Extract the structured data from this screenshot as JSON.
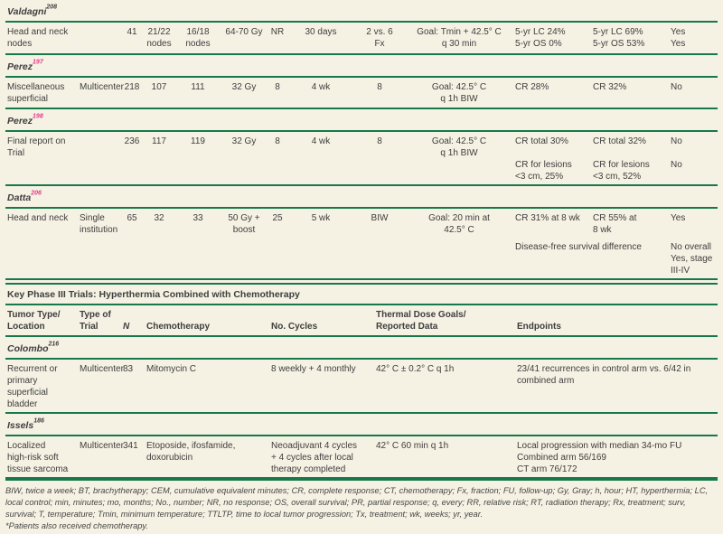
{
  "colors": {
    "background": "#f5f1e3",
    "rule_green": "#17794b",
    "text": "#3e3e3e",
    "citation_pink": "#e23a8e"
  },
  "rt": [
    {
      "name": "Valdagni",
      "ref": "208",
      "cells": [
        "Head and neck\nnodes",
        "",
        "41",
        "21/22\nnodes",
        "16/18\nnodes",
        "64-70 Gy",
        "NR",
        "30 days",
        "2 vs. 6\nFx",
        "Goal: Tmin + 42.5° C\nq 30 min",
        "5-yr LC 24%\n5-yr OS 0%",
        "5-yr LC 69%\n5-yr OS 53%",
        "Yes\nYes"
      ]
    },
    {
      "name": "Perez",
      "ref": "197",
      "cells": [
        "Miscellaneous\nsuperficial",
        "Multicenter",
        "218",
        "107",
        "111",
        "32 Gy",
        "8",
        "4 wk",
        "8",
        "Goal: 42.5° C\nq 1h BIW",
        "CR 28%",
        "CR 32%",
        "No"
      ]
    },
    {
      "name": "Perez",
      "ref": "198",
      "cells": [
        "Final report on\nTrial",
        "",
        "236",
        "117",
        "119",
        "32 Gy",
        "8",
        "4 wk",
        "8",
        "Goal: 42.5° C\nq 1h BIW",
        "CR total 30%\n\nCR for lesions\n<3 cm, 25%",
        "CR total 32%\n\nCR for lesions\n<3 cm, 52%",
        "No\n\nNo"
      ]
    },
    {
      "name": "Datta",
      "ref": "206",
      "cells": [
        "Head and neck",
        "Single\ninstitution",
        "65",
        "32",
        "33",
        "50 Gy +\nboost",
        "25",
        "5 wk",
        "BIW",
        "Goal: 20 min at\n42.5° C",
        "CR 31% at 8 wk",
        "CR 55% at\n8 wk",
        "Yes"
      ],
      "extra_span": "Disease-free survival difference",
      "extra_sig": "No overall\nYes, stage\nIII-IV"
    }
  ],
  "chemo_banner": "Key Phase III Trials: Hyperthermia Combined with Chemotherapy",
  "chemo_header": {
    "cells": [
      "Tumor Type/\nLocation",
      "Type of\nTrial",
      "N",
      "Chemotherapy",
      "No. Cycles",
      "Thermal Dose Goals/\nReported Data",
      "Endpoints"
    ]
  },
  "chemo": [
    {
      "name": "Colombo",
      "ref": "216",
      "cells": [
        "Recurrent or\nprimary\nsuperficial\nbladder",
        "Multicenter",
        "83",
        "Mitomycin C",
        "8 weekly + 4 monthly",
        "42° C ± 0.2° C q 1h",
        "23/41 recurrences in control arm vs. 6/42 in\ncombined arm"
      ]
    },
    {
      "name": "Issels",
      "ref": "186",
      "cells": [
        "Localized\nhigh-risk soft\ntissue sarcoma",
        "Multicenter",
        "341",
        "Etoposide, ifosfamide,\ndoxorubicin",
        "Neoadjuvant 4 cycles\n+ 4 cycles after local\ntherapy completed",
        "42° C 60 min q 1h",
        "Local progression with median 34-mo FU\nCombined arm 56/169\nCT arm 76/172"
      ]
    }
  ],
  "footnote": {
    "abbreviations": "BIW, twice a week; BT, brachytherapy; CEM, cumulative equivalent minutes; CR, complete response; CT, chemotherapy; Fx, fraction; FU, follow-up; Gy, Gray; h, hour; HT, hyperthermia; LC, local control; min, minutes; mo, months; No., number; NR, no response; OS, overall survival; PR, partial response; q, every; RR, relative risk; RT, radiation therapy; Rx, treatment; surv, survival; T, temperature; Tmin, minimum temperature; TTLTP, time to local tumor progression; Tx, treatment; wk, weeks; yr, year.",
    "asterisk": "*Patients also received chemotherapy."
  }
}
